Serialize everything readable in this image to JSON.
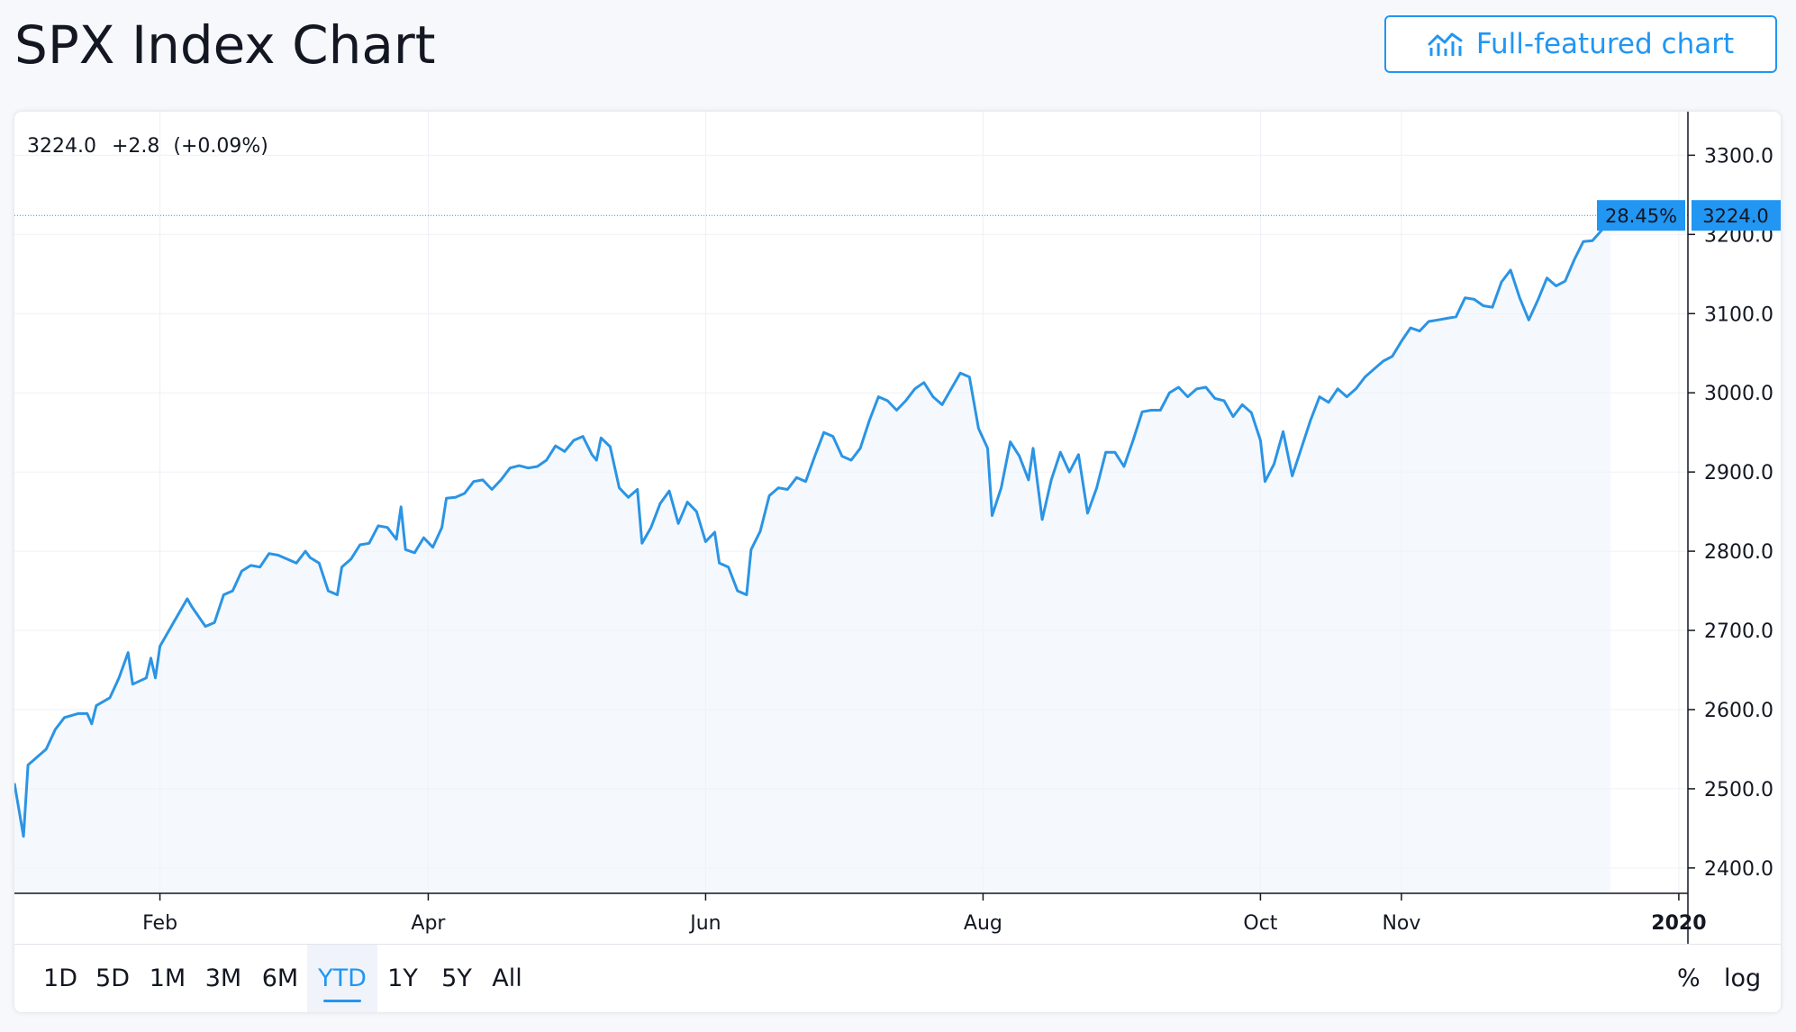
{
  "page_title": "SPX Index Chart",
  "full_button": {
    "label": "Full-featured chart",
    "icon": "chart-line-icon"
  },
  "legend": {
    "last": "3224.0",
    "change": "+2.8",
    "change_pct": "(+0.09%)"
  },
  "price_label": {
    "percent": "28.45%",
    "value": "3224.0"
  },
  "range_buttons": [
    "1D",
    "5D",
    "1M",
    "3M",
    "6M",
    "YTD",
    "1Y",
    "5Y",
    "All"
  ],
  "active_range": "YTD",
  "options": {
    "percent": "%",
    "log": "log"
  },
  "colors": {
    "accent": "#2196f3",
    "line": "#2b94e4",
    "area": "#eef5fd",
    "grid": "#edf0f5",
    "text": "#131722"
  },
  "chart_data": {
    "type": "area",
    "title": "SPX Index Chart",
    "x_tick_labels": [
      "Feb",
      "Apr",
      "Jun",
      "Aug",
      "Oct",
      "Nov",
      "2020"
    ],
    "x_tick_dates": [
      "2019-02-01",
      "2019-04-01",
      "2019-06-01",
      "2019-08-01",
      "2019-10-01",
      "2019-11-01",
      "2020-01-01"
    ],
    "y_ticks": [
      2400,
      2500,
      2600,
      2700,
      2800,
      2900,
      3000,
      3100,
      3200,
      3300
    ],
    "y_tick_labels": [
      "2400.0",
      "2500.0",
      "2600.0",
      "2700.0",
      "2800.0",
      "2900.0",
      "3000.0",
      "3100.0",
      "3200.0",
      "3300.0"
    ],
    "x_range": [
      "2018-12-31",
      "2020-01-03"
    ],
    "ylim": [
      2368,
      3355
    ],
    "grid": true,
    "last_value": 3224.0,
    "series": [
      {
        "values": [
          [
            "2018-12-31",
            2507
          ],
          [
            "2019-01-02",
            2440
          ],
          [
            "2019-01-03",
            2530
          ],
          [
            "2019-01-07",
            2550
          ],
          [
            "2019-01-09",
            2575
          ],
          [
            "2019-01-11",
            2590
          ],
          [
            "2019-01-14",
            2595
          ],
          [
            "2019-01-16",
            2595
          ],
          [
            "2019-01-17",
            2582
          ],
          [
            "2019-01-18",
            2605
          ],
          [
            "2019-01-21",
            2615
          ],
          [
            "2019-01-23",
            2640
          ],
          [
            "2019-01-25",
            2672
          ],
          [
            "2019-01-26",
            2632
          ],
          [
            "2019-01-29",
            2640
          ],
          [
            "2019-01-30",
            2665
          ],
          [
            "2019-01-31",
            2640
          ],
          [
            "2019-02-01",
            2680
          ],
          [
            "2019-02-03",
            2700
          ],
          [
            "2019-02-05",
            2720
          ],
          [
            "2019-02-07",
            2740
          ],
          [
            "2019-02-08",
            2730
          ],
          [
            "2019-02-11",
            2705
          ],
          [
            "2019-02-13",
            2710
          ],
          [
            "2019-02-15",
            2745
          ],
          [
            "2019-02-17",
            2750
          ],
          [
            "2019-02-19",
            2775
          ],
          [
            "2019-02-21",
            2782
          ],
          [
            "2019-02-23",
            2780
          ],
          [
            "2019-02-25",
            2797
          ],
          [
            "2019-02-27",
            2795
          ],
          [
            "2019-03-01",
            2790
          ],
          [
            "2019-03-03",
            2785
          ],
          [
            "2019-03-05",
            2800
          ],
          [
            "2019-03-06",
            2792
          ],
          [
            "2019-03-08",
            2785
          ],
          [
            "2019-03-10",
            2750
          ],
          [
            "2019-03-12",
            2745
          ],
          [
            "2019-03-13",
            2780
          ],
          [
            "2019-03-15",
            2790
          ],
          [
            "2019-03-17",
            2808
          ],
          [
            "2019-03-19",
            2810
          ],
          [
            "2019-03-21",
            2832
          ],
          [
            "2019-03-23",
            2830
          ],
          [
            "2019-03-25",
            2815
          ],
          [
            "2019-03-26",
            2856
          ],
          [
            "2019-03-27",
            2802
          ],
          [
            "2019-03-29",
            2798
          ],
          [
            "2019-03-31",
            2817
          ],
          [
            "2019-04-02",
            2805
          ],
          [
            "2019-04-04",
            2830
          ],
          [
            "2019-04-05",
            2867
          ],
          [
            "2019-04-07",
            2868
          ],
          [
            "2019-04-09",
            2873
          ],
          [
            "2019-04-11",
            2888
          ],
          [
            "2019-04-13",
            2890
          ],
          [
            "2019-04-15",
            2878
          ],
          [
            "2019-04-17",
            2890
          ],
          [
            "2019-04-19",
            2905
          ],
          [
            "2019-04-21",
            2908
          ],
          [
            "2019-04-23",
            2905
          ],
          [
            "2019-04-25",
            2907
          ],
          [
            "2019-04-27",
            2915
          ],
          [
            "2019-04-29",
            2933
          ],
          [
            "2019-05-01",
            2926
          ],
          [
            "2019-05-03",
            2940
          ],
          [
            "2019-05-05",
            2945
          ],
          [
            "2019-05-07",
            2922
          ],
          [
            "2019-05-08",
            2915
          ],
          [
            "2019-05-09",
            2943
          ],
          [
            "2019-05-11",
            2932
          ],
          [
            "2019-05-13",
            2880
          ],
          [
            "2019-05-15",
            2868
          ],
          [
            "2019-05-17",
            2878
          ],
          [
            "2019-05-18",
            2810
          ],
          [
            "2019-05-20",
            2830
          ],
          [
            "2019-05-22",
            2860
          ],
          [
            "2019-05-24",
            2876
          ],
          [
            "2019-05-26",
            2835
          ],
          [
            "2019-05-28",
            2862
          ],
          [
            "2019-05-30",
            2850
          ],
          [
            "2019-06-01",
            2812
          ],
          [
            "2019-06-03",
            2824
          ],
          [
            "2019-06-04",
            2785
          ],
          [
            "2019-06-06",
            2780
          ],
          [
            "2019-06-08",
            2750
          ],
          [
            "2019-06-10",
            2745
          ],
          [
            "2019-06-11",
            2802
          ],
          [
            "2019-06-13",
            2825
          ],
          [
            "2019-06-15",
            2870
          ],
          [
            "2019-06-17",
            2880
          ],
          [
            "2019-06-19",
            2878
          ],
          [
            "2019-06-21",
            2893
          ],
          [
            "2019-06-23",
            2888
          ],
          [
            "2019-06-25",
            2920
          ],
          [
            "2019-06-27",
            2950
          ],
          [
            "2019-06-29",
            2945
          ],
          [
            "2019-07-01",
            2920
          ],
          [
            "2019-07-03",
            2915
          ],
          [
            "2019-07-05",
            2930
          ],
          [
            "2019-07-07",
            2965
          ],
          [
            "2019-07-09",
            2995
          ],
          [
            "2019-07-11",
            2990
          ],
          [
            "2019-07-13",
            2978
          ],
          [
            "2019-07-15",
            2990
          ],
          [
            "2019-07-17",
            3005
          ],
          [
            "2019-07-19",
            3013
          ],
          [
            "2019-07-21",
            2995
          ],
          [
            "2019-07-23",
            2985
          ],
          [
            "2019-07-25",
            3005
          ],
          [
            "2019-07-27",
            3025
          ],
          [
            "2019-07-29",
            3020
          ],
          [
            "2019-07-31",
            2955
          ],
          [
            "2019-08-02",
            2930
          ],
          [
            "2019-08-03",
            2845
          ],
          [
            "2019-08-05",
            2880
          ],
          [
            "2019-08-07",
            2938
          ],
          [
            "2019-08-09",
            2920
          ],
          [
            "2019-08-11",
            2890
          ],
          [
            "2019-08-12",
            2930
          ],
          [
            "2019-08-14",
            2840
          ],
          [
            "2019-08-16",
            2890
          ],
          [
            "2019-08-18",
            2925
          ],
          [
            "2019-08-20",
            2900
          ],
          [
            "2019-08-22",
            2922
          ],
          [
            "2019-08-24",
            2848
          ],
          [
            "2019-08-26",
            2880
          ],
          [
            "2019-08-28",
            2925
          ],
          [
            "2019-08-30",
            2925
          ],
          [
            "2019-09-01",
            2907
          ],
          [
            "2019-09-03",
            2940
          ],
          [
            "2019-09-05",
            2976
          ],
          [
            "2019-09-07",
            2978
          ],
          [
            "2019-09-09",
            2978
          ],
          [
            "2019-09-11",
            3000
          ],
          [
            "2019-09-13",
            3007
          ],
          [
            "2019-09-15",
            2995
          ],
          [
            "2019-09-17",
            3005
          ],
          [
            "2019-09-19",
            3007
          ],
          [
            "2019-09-21",
            2993
          ],
          [
            "2019-09-23",
            2990
          ],
          [
            "2019-09-25",
            2970
          ],
          [
            "2019-09-27",
            2985
          ],
          [
            "2019-09-29",
            2975
          ],
          [
            "2019-10-01",
            2940
          ],
          [
            "2019-10-02",
            2888
          ],
          [
            "2019-10-04",
            2910
          ],
          [
            "2019-10-06",
            2951
          ],
          [
            "2019-10-08",
            2895
          ],
          [
            "2019-10-10",
            2930
          ],
          [
            "2019-10-12",
            2965
          ],
          [
            "2019-10-14",
            2995
          ],
          [
            "2019-10-16",
            2988
          ],
          [
            "2019-10-18",
            3005
          ],
          [
            "2019-10-20",
            2995
          ],
          [
            "2019-10-22",
            3005
          ],
          [
            "2019-10-24",
            3020
          ],
          [
            "2019-10-26",
            3030
          ],
          [
            "2019-10-28",
            3040
          ],
          [
            "2019-10-30",
            3046
          ],
          [
            "2019-11-01",
            3065
          ],
          [
            "2019-11-03",
            3082
          ],
          [
            "2019-11-05",
            3078
          ],
          [
            "2019-11-07",
            3090
          ],
          [
            "2019-11-09",
            3092
          ],
          [
            "2019-11-11",
            3094
          ],
          [
            "2019-11-13",
            3096
          ],
          [
            "2019-11-15",
            3120
          ],
          [
            "2019-11-17",
            3118
          ],
          [
            "2019-11-19",
            3110
          ],
          [
            "2019-11-21",
            3108
          ],
          [
            "2019-11-23",
            3140
          ],
          [
            "2019-11-25",
            3155
          ],
          [
            "2019-11-27",
            3120
          ],
          [
            "2019-11-29",
            3092
          ],
          [
            "2019-12-01",
            3117
          ],
          [
            "2019-12-03",
            3145
          ],
          [
            "2019-12-05",
            3135
          ],
          [
            "2019-12-07",
            3141
          ],
          [
            "2019-12-09",
            3168
          ],
          [
            "2019-12-11",
            3191
          ],
          [
            "2019-12-13",
            3192
          ],
          [
            "2019-12-15",
            3205
          ],
          [
            "2019-12-17",
            3224
          ]
        ]
      }
    ]
  }
}
